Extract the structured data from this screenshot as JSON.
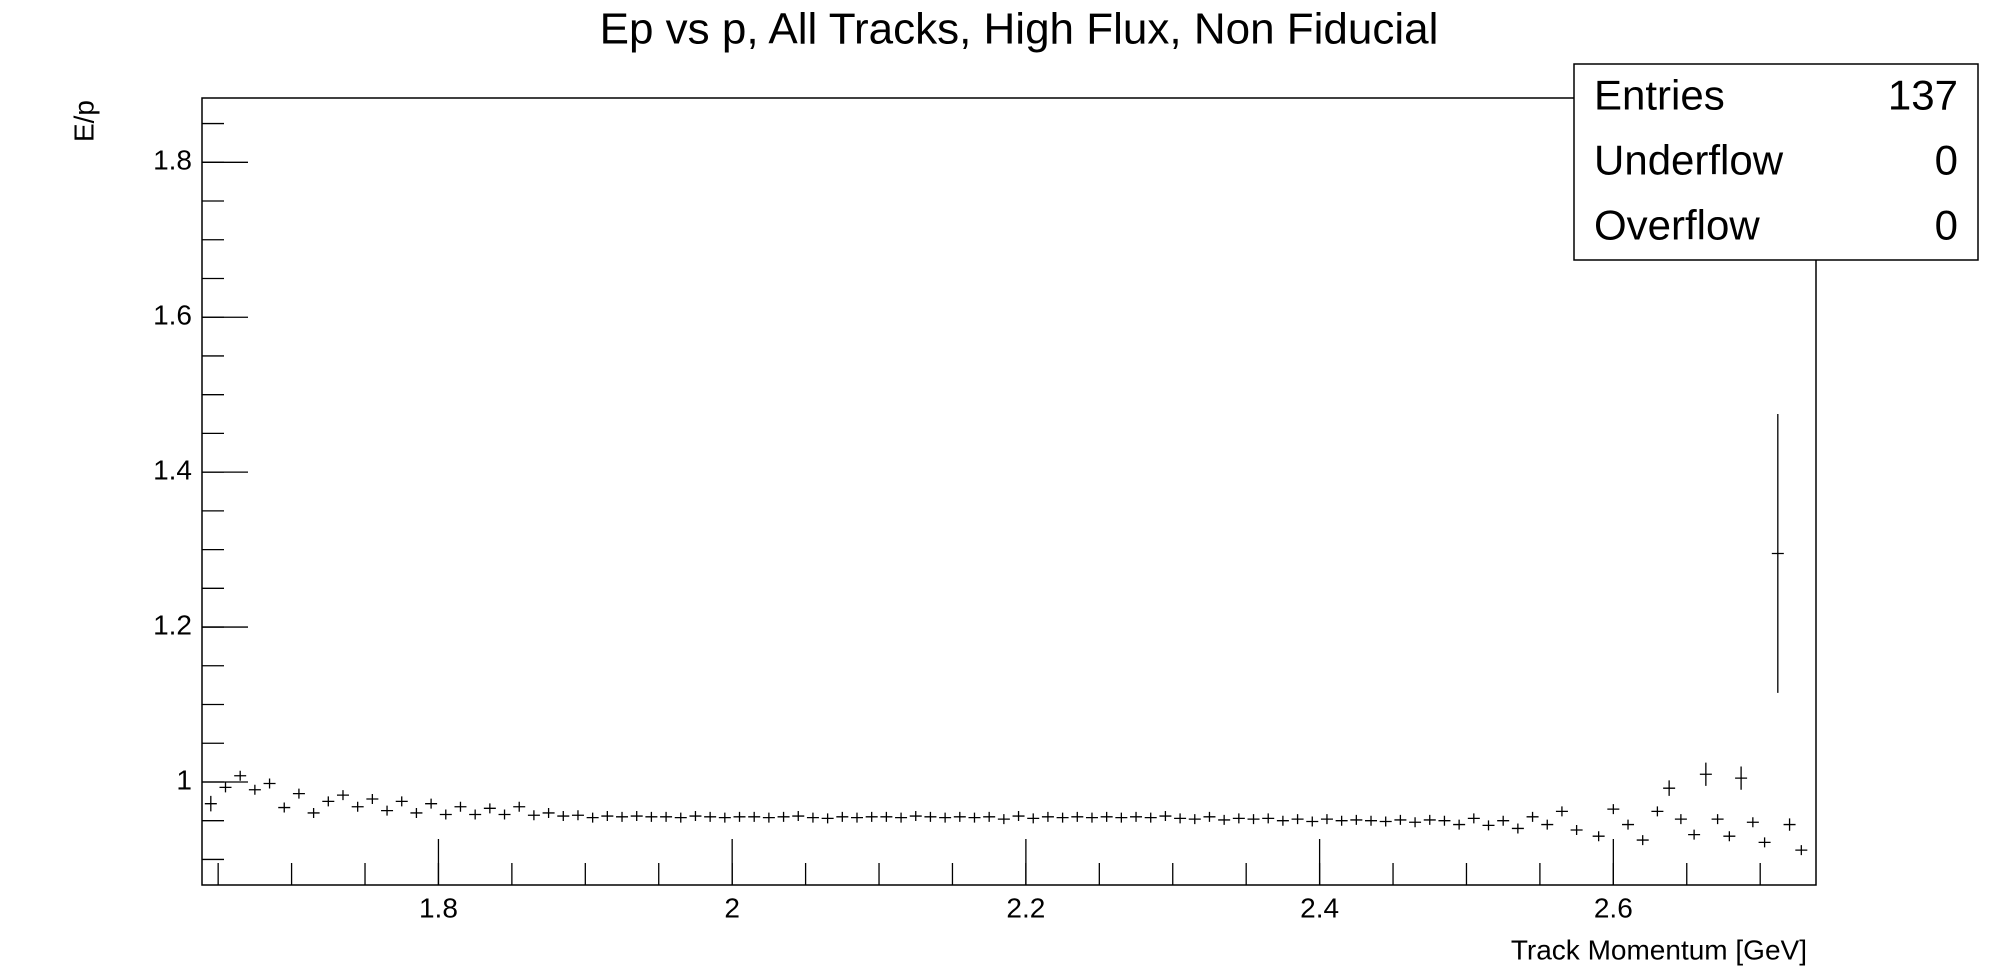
{
  "chart_data": {
    "type": "profile",
    "title": "Ep vs p, All Tracks, High Flux, Non Fiducial",
    "x_label": "Track Momentum [GeV]",
    "y_label": "E/p",
    "color": "#000000",
    "xlim": [
      1.639,
      2.738
    ],
    "ylim": [
      0.867,
      1.883
    ],
    "xticks": [
      1.8,
      2,
      2.2,
      2.4,
      2.6
    ],
    "yticks": [
      1,
      1.2,
      1.4,
      1.6,
      1.8
    ],
    "stats": {
      "rows": [
        [
          "Entries",
          "137"
        ],
        [
          "Underflow",
          "0"
        ],
        [
          "Overflow",
          "0"
        ]
      ]
    },
    "x": [
      1.645,
      1.655,
      1.665,
      1.675,
      1.685,
      1.695,
      1.705,
      1.715,
      1.725,
      1.735,
      1.745,
      1.755,
      1.765,
      1.775,
      1.785,
      1.795,
      1.805,
      1.815,
      1.825,
      1.835,
      1.845,
      1.855,
      1.865,
      1.875,
      1.885,
      1.895,
      1.905,
      1.915,
      1.925,
      1.935,
      1.945,
      1.955,
      1.965,
      1.975,
      1.985,
      1.995,
      2.005,
      2.015,
      2.025,
      2.035,
      2.045,
      2.055,
      2.065,
      2.075,
      2.085,
      2.095,
      2.105,
      2.115,
      2.125,
      2.135,
      2.145,
      2.155,
      2.165,
      2.175,
      2.185,
      2.195,
      2.205,
      2.215,
      2.225,
      2.235,
      2.245,
      2.255,
      2.265,
      2.275,
      2.285,
      2.295,
      2.305,
      2.315,
      2.325,
      2.335,
      2.345,
      2.355,
      2.365,
      2.375,
      2.385,
      2.395,
      2.405,
      2.415,
      2.425,
      2.435,
      2.445,
      2.455,
      2.465,
      2.475,
      2.485,
      2.495,
      2.505,
      2.515,
      2.525,
      2.535,
      2.545,
      2.555,
      2.565,
      2.575,
      2.59,
      2.6,
      2.61,
      2.62,
      2.63,
      2.638,
      2.646,
      2.655,
      2.663,
      2.671,
      2.679,
      2.687,
      2.695,
      2.703,
      2.712,
      2.72,
      2.728
    ],
    "values": [
      0.972,
      0.993,
      1.008,
      0.99,
      0.998,
      0.967,
      0.985,
      0.96,
      0.975,
      0.983,
      0.968,
      0.978,
      0.963,
      0.975,
      0.96,
      0.972,
      0.958,
      0.968,
      0.958,
      0.966,
      0.958,
      0.968,
      0.957,
      0.96,
      0.956,
      0.957,
      0.954,
      0.956,
      0.955,
      0.956,
      0.955,
      0.955,
      0.954,
      0.956,
      0.955,
      0.954,
      0.955,
      0.955,
      0.954,
      0.955,
      0.956,
      0.954,
      0.953,
      0.955,
      0.954,
      0.955,
      0.955,
      0.954,
      0.956,
      0.955,
      0.954,
      0.955,
      0.954,
      0.955,
      0.952,
      0.956,
      0.953,
      0.955,
      0.954,
      0.955,
      0.954,
      0.955,
      0.954,
      0.955,
      0.954,
      0.956,
      0.953,
      0.952,
      0.955,
      0.951,
      0.953,
      0.952,
      0.953,
      0.95,
      0.952,
      0.949,
      0.952,
      0.95,
      0.951,
      0.95,
      0.949,
      0.951,
      0.948,
      0.951,
      0.95,
      0.945,
      0.953,
      0.944,
      0.95,
      0.94,
      0.955,
      0.945,
      0.962,
      0.938,
      0.93,
      0.965,
      0.945,
      0.925,
      0.962,
      0.992,
      0.952,
      0.932,
      1.01,
      0.952,
      0.93,
      1.005,
      0.948,
      0.922,
      1.295,
      0.945,
      0.912
    ],
    "errors": [
      0.01,
      0.005,
      0.004,
      0.004,
      0.004,
      0.004,
      0.004,
      0.004,
      0.003,
      0.003,
      0.003,
      0.003,
      0.003,
      0.003,
      0.003,
      0.003,
      0.003,
      0.003,
      0.003,
      0.003,
      0.003,
      0.003,
      0.003,
      0.003,
      0.002,
      0.002,
      0.002,
      0.002,
      0.002,
      0.002,
      0.002,
      0.002,
      0.002,
      0.002,
      0.002,
      0.002,
      0.002,
      0.002,
      0.002,
      0.002,
      0.002,
      0.002,
      0.002,
      0.002,
      0.002,
      0.002,
      0.002,
      0.002,
      0.002,
      0.002,
      0.002,
      0.002,
      0.002,
      0.002,
      0.002,
      0.002,
      0.002,
      0.002,
      0.002,
      0.002,
      0.002,
      0.002,
      0.002,
      0.002,
      0.002,
      0.002,
      0.002,
      0.002,
      0.002,
      0.002,
      0.002,
      0.002,
      0.002,
      0.002,
      0.002,
      0.002,
      0.002,
      0.002,
      0.002,
      0.002,
      0.002,
      0.002,
      0.002,
      0.002,
      0.002,
      0.002,
      0.002,
      0.002,
      0.002,
      0.002,
      0.003,
      0.003,
      0.003,
      0.003,
      0.003,
      0.004,
      0.003,
      0.003,
      0.004,
      0.01,
      0.004,
      0.003,
      0.015,
      0.004,
      0.003,
      0.015,
      0.005,
      0.003,
      0.18,
      0.008,
      0.003
    ]
  }
}
